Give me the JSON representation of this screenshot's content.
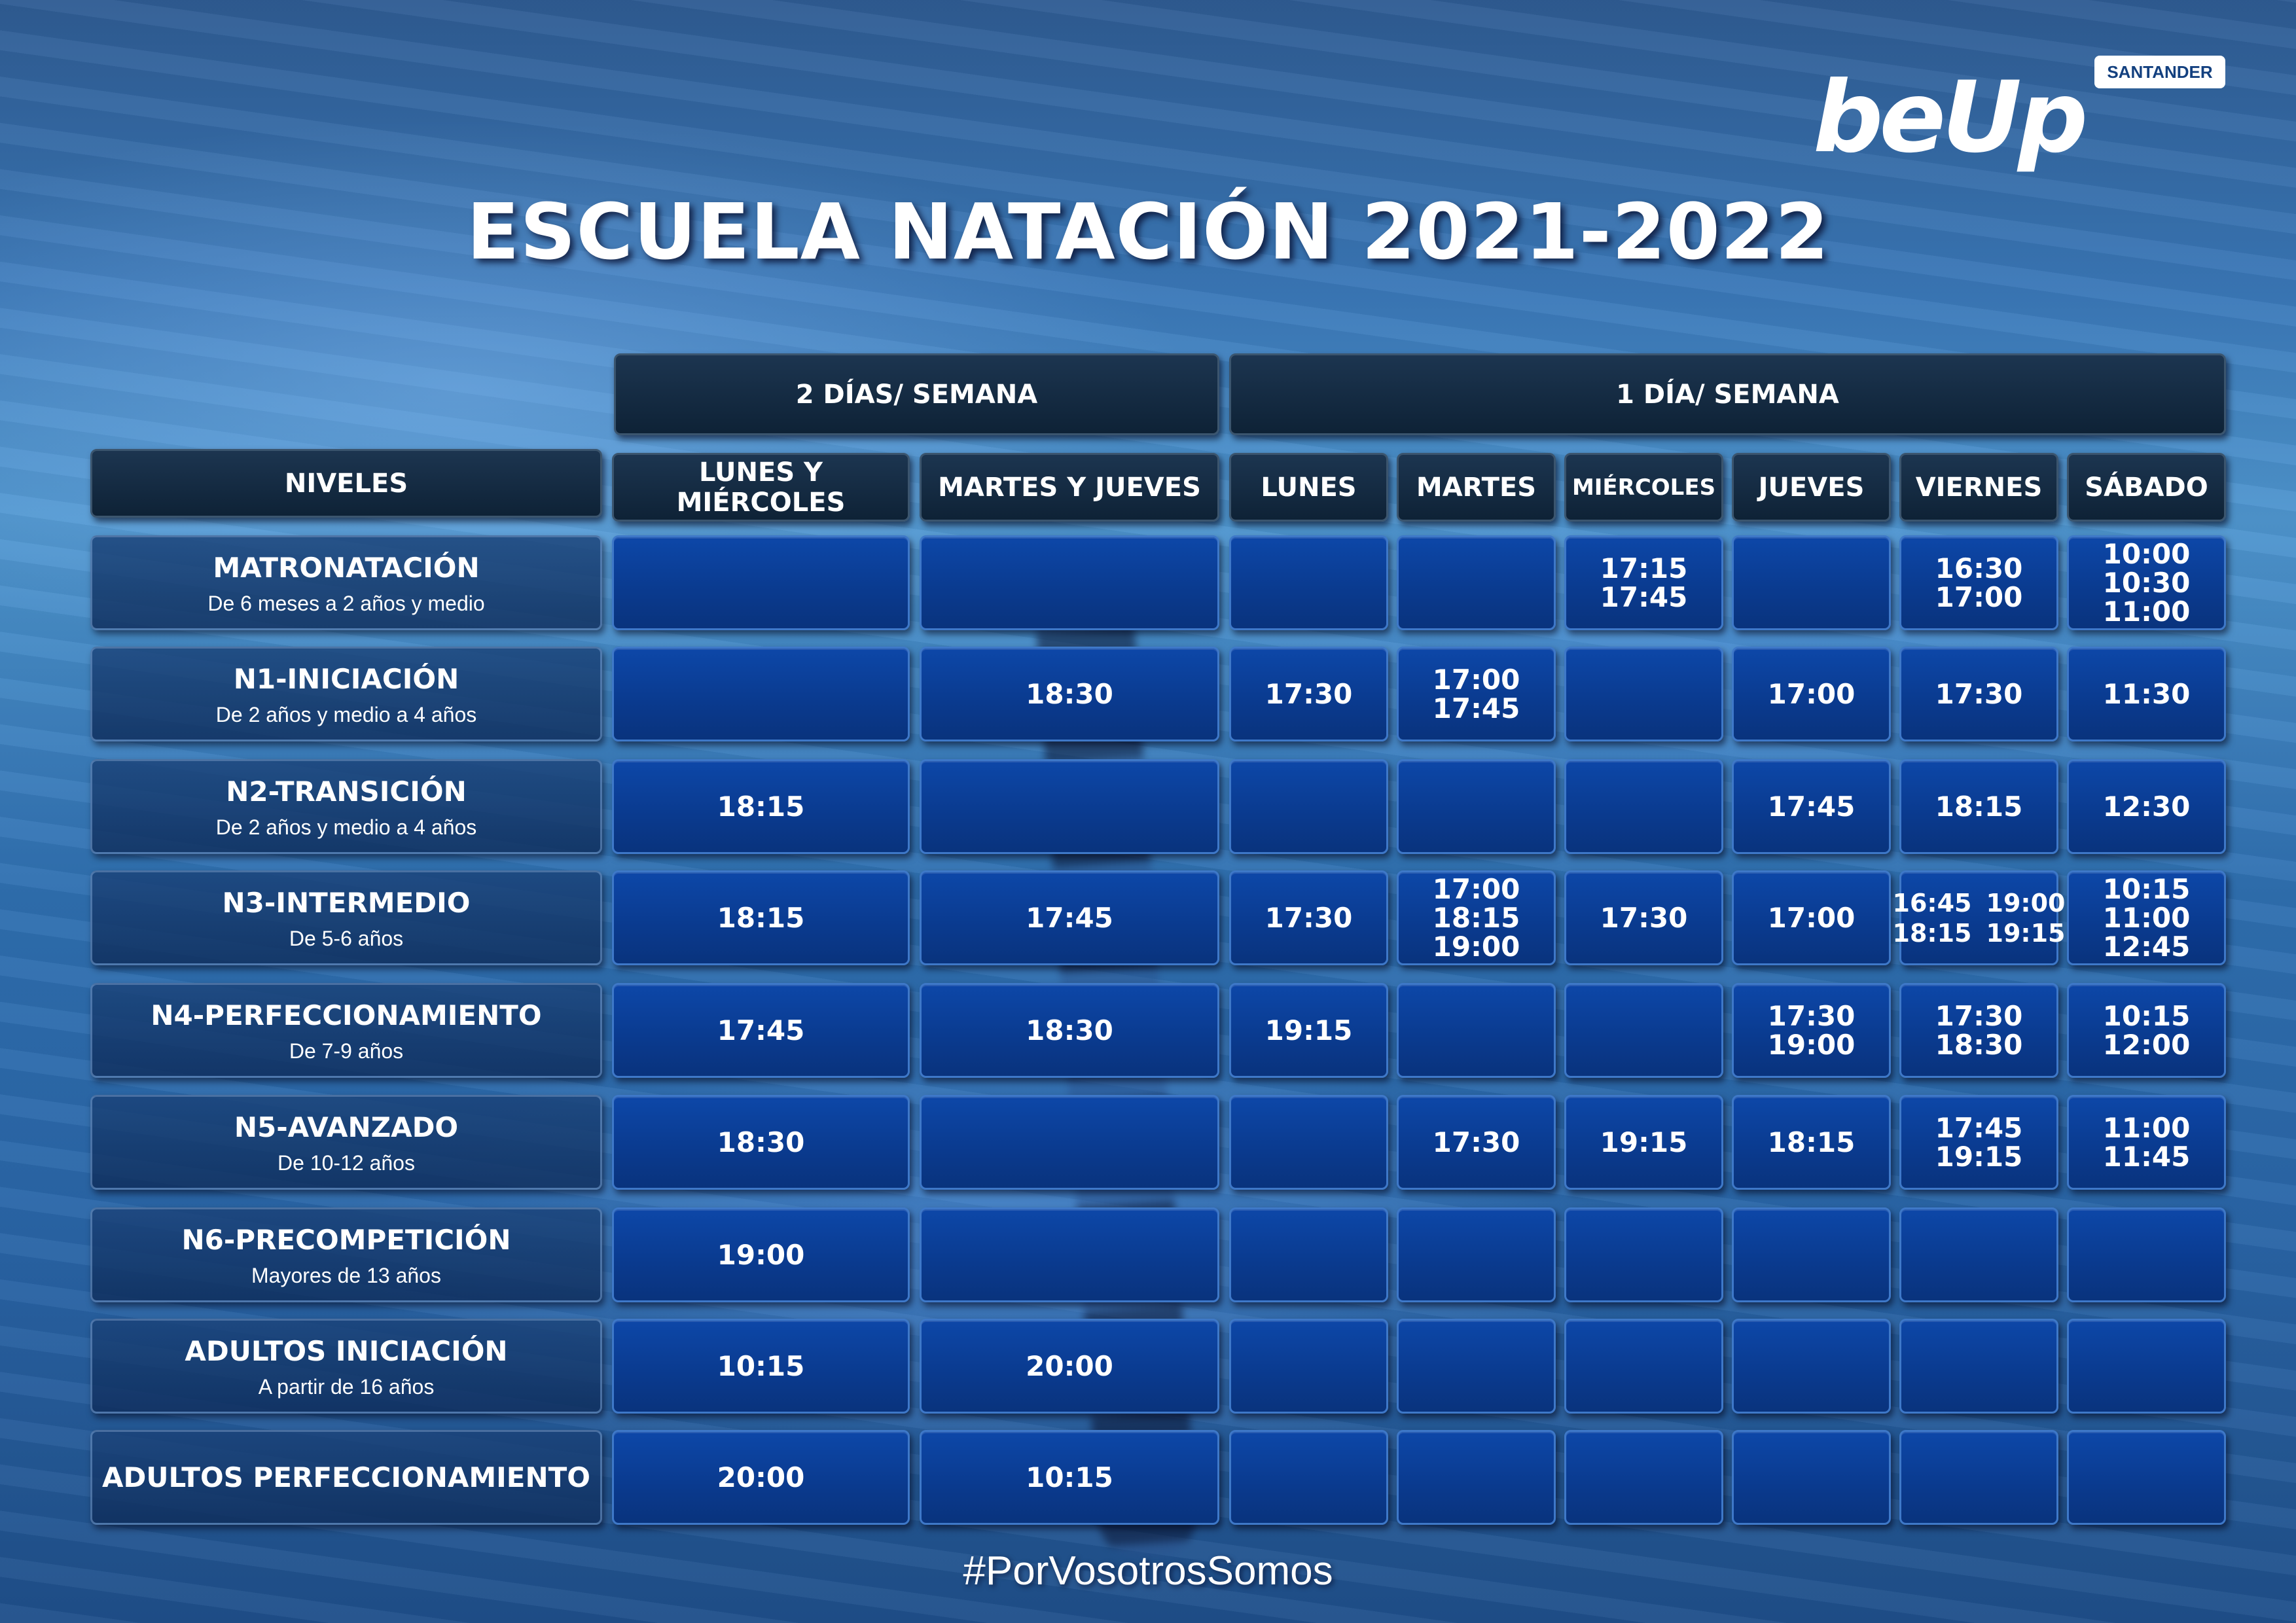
{
  "brand": {
    "logo_text": "beUp",
    "badge": "SANTANDER"
  },
  "title": "ESCUELA NATACIÓN 2021-2022",
  "groups": [
    "2 DÍAS/ SEMANA",
    "1 DÍA/ SEMANA"
  ],
  "levels_header": "NIVELES",
  "columns": [
    "LUNES Y MIÉRCOLES",
    "MARTES Y JUEVES",
    "LUNES",
    "MARTES",
    "MIÉRCOLES",
    "JUEVES",
    "VIERNES",
    "SÁBADO"
  ],
  "rows": [
    {
      "name": "MATRONATACIÓN",
      "sub": "De 6 meses a 2 años y medio",
      "slots": [
        [],
        [],
        [],
        [],
        [
          "17:15",
          "17:45"
        ],
        [],
        [
          "16:30",
          "17:00"
        ],
        [
          "10:00",
          "10:30",
          "11:00"
        ]
      ]
    },
    {
      "name": "N1-INICIACIÓN",
      "sub": "De 2 años y medio a 4 años",
      "slots": [
        [],
        [
          "18:30"
        ],
        [
          "17:30"
        ],
        [
          "17:00",
          "17:45"
        ],
        [],
        [
          "17:00"
        ],
        [
          "17:30"
        ],
        [
          "11:30"
        ]
      ]
    },
    {
      "name": "N2-TRANSICIÓN",
      "sub": "De 2 años y medio a 4 años",
      "slots": [
        [
          "18:15"
        ],
        [],
        [],
        [],
        [],
        [
          "17:45"
        ],
        [
          "18:15"
        ],
        [
          "12:30"
        ]
      ]
    },
    {
      "name": "N3-INTERMEDIO",
      "sub": "De 5-6 años",
      "slots": [
        [
          "18:15"
        ],
        [
          "17:45"
        ],
        [
          "17:30"
        ],
        [
          "17:00",
          "18:15",
          "19:00"
        ],
        [
          "17:30"
        ],
        [
          "17:00"
        ],
        [
          "16:45",
          "19:00",
          "18:15",
          "19:15"
        ],
        [
          "10:15",
          "11:00",
          "12:45"
        ]
      ]
    },
    {
      "name": "N4-PERFECCIONAMIENTO",
      "sub": "De 7-9 años",
      "slots": [
        [
          "17:45"
        ],
        [
          "18:30"
        ],
        [
          "19:15"
        ],
        [],
        [],
        [
          "17:30",
          "19:00"
        ],
        [
          "17:30",
          "18:30"
        ],
        [
          "10:15",
          "12:00"
        ]
      ]
    },
    {
      "name": "N5-AVANZADO",
      "sub": "De 10-12 años",
      "slots": [
        [
          "18:30"
        ],
        [],
        [],
        [
          "17:30"
        ],
        [
          "19:15"
        ],
        [
          "18:15"
        ],
        [
          "17:45",
          "19:15"
        ],
        [
          "11:00",
          "11:45"
        ]
      ]
    },
    {
      "name": "N6-PRECOMPETICIÓN",
      "sub": "Mayores de 13 años",
      "slots": [
        [
          "19:00"
        ],
        [],
        [],
        [],
        [],
        [],
        [],
        []
      ]
    },
    {
      "name": "ADULTOS INICIACIÓN",
      "sub": "A partir de 16 años",
      "slots": [
        [
          "10:15"
        ],
        [
          "20:00"
        ],
        [],
        [],
        [],
        [],
        [],
        []
      ]
    },
    {
      "name": "ADULTOS PERFECCIONAMIENTO",
      "sub": "",
      "slots": [
        [
          "20:00"
        ],
        [
          "10:15"
        ],
        [],
        [],
        [],
        [],
        [],
        []
      ]
    }
  ],
  "hashtag": "#PorVosotrosSomos"
}
